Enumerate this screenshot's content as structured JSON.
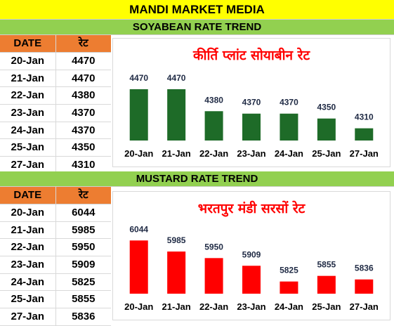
{
  "header": {
    "title": "MANDI MARKET MEDIA"
  },
  "soyabean": {
    "section_title": "SOYABEAN RATE TREND",
    "table": {
      "headers": [
        "DATE",
        "रेट"
      ],
      "rows": [
        [
          "20-Jan",
          "4470"
        ],
        [
          "21-Jan",
          "4470"
        ],
        [
          "22-Jan",
          "4380"
        ],
        [
          "23-Jan",
          "4370"
        ],
        [
          "24-Jan",
          "4370"
        ],
        [
          "25-Jan",
          "4350"
        ],
        [
          "27-Jan",
          "4310"
        ]
      ]
    }
  },
  "mustard": {
    "section_title": "MUSTARD RATE TREND",
    "table": {
      "headers": [
        "DATE",
        "रेट"
      ],
      "rows": [
        [
          "20-Jan",
          "6044"
        ],
        [
          "21-Jan",
          "5985"
        ],
        [
          "22-Jan",
          "5950"
        ],
        [
          "23-Jan",
          "5909"
        ],
        [
          "24-Jan",
          "5825"
        ],
        [
          "25-Jan",
          "5855"
        ],
        [
          "27-Jan",
          "5836"
        ]
      ]
    }
  },
  "colors": {
    "soyabean_bar": "#1e6b28",
    "mustard_bar": "#ff0000",
    "chart_title": "#ff0000"
  },
  "chart_data": [
    {
      "type": "bar",
      "title": "कीर्ति प्लांट सोयाबीन रेट",
      "categories": [
        "20-Jan",
        "21-Jan",
        "22-Jan",
        "23-Jan",
        "24-Jan",
        "25-Jan",
        "27-Jan"
      ],
      "values": [
        4470,
        4470,
        4380,
        4370,
        4370,
        4350,
        4310
      ],
      "ylim": [
        4260,
        4490
      ],
      "grid": false,
      "data_labels": true
    },
    {
      "type": "bar",
      "title": "भरतपुर मंडी सरसों रेट",
      "categories": [
        "20-Jan",
        "21-Jan",
        "22-Jan",
        "23-Jan",
        "24-Jan",
        "25-Jan",
        "27-Jan"
      ],
      "values": [
        6044,
        5985,
        5950,
        5909,
        5825,
        5855,
        5836
      ],
      "ylim": [
        5760,
        6060
      ],
      "grid": false,
      "data_labels": true
    }
  ]
}
